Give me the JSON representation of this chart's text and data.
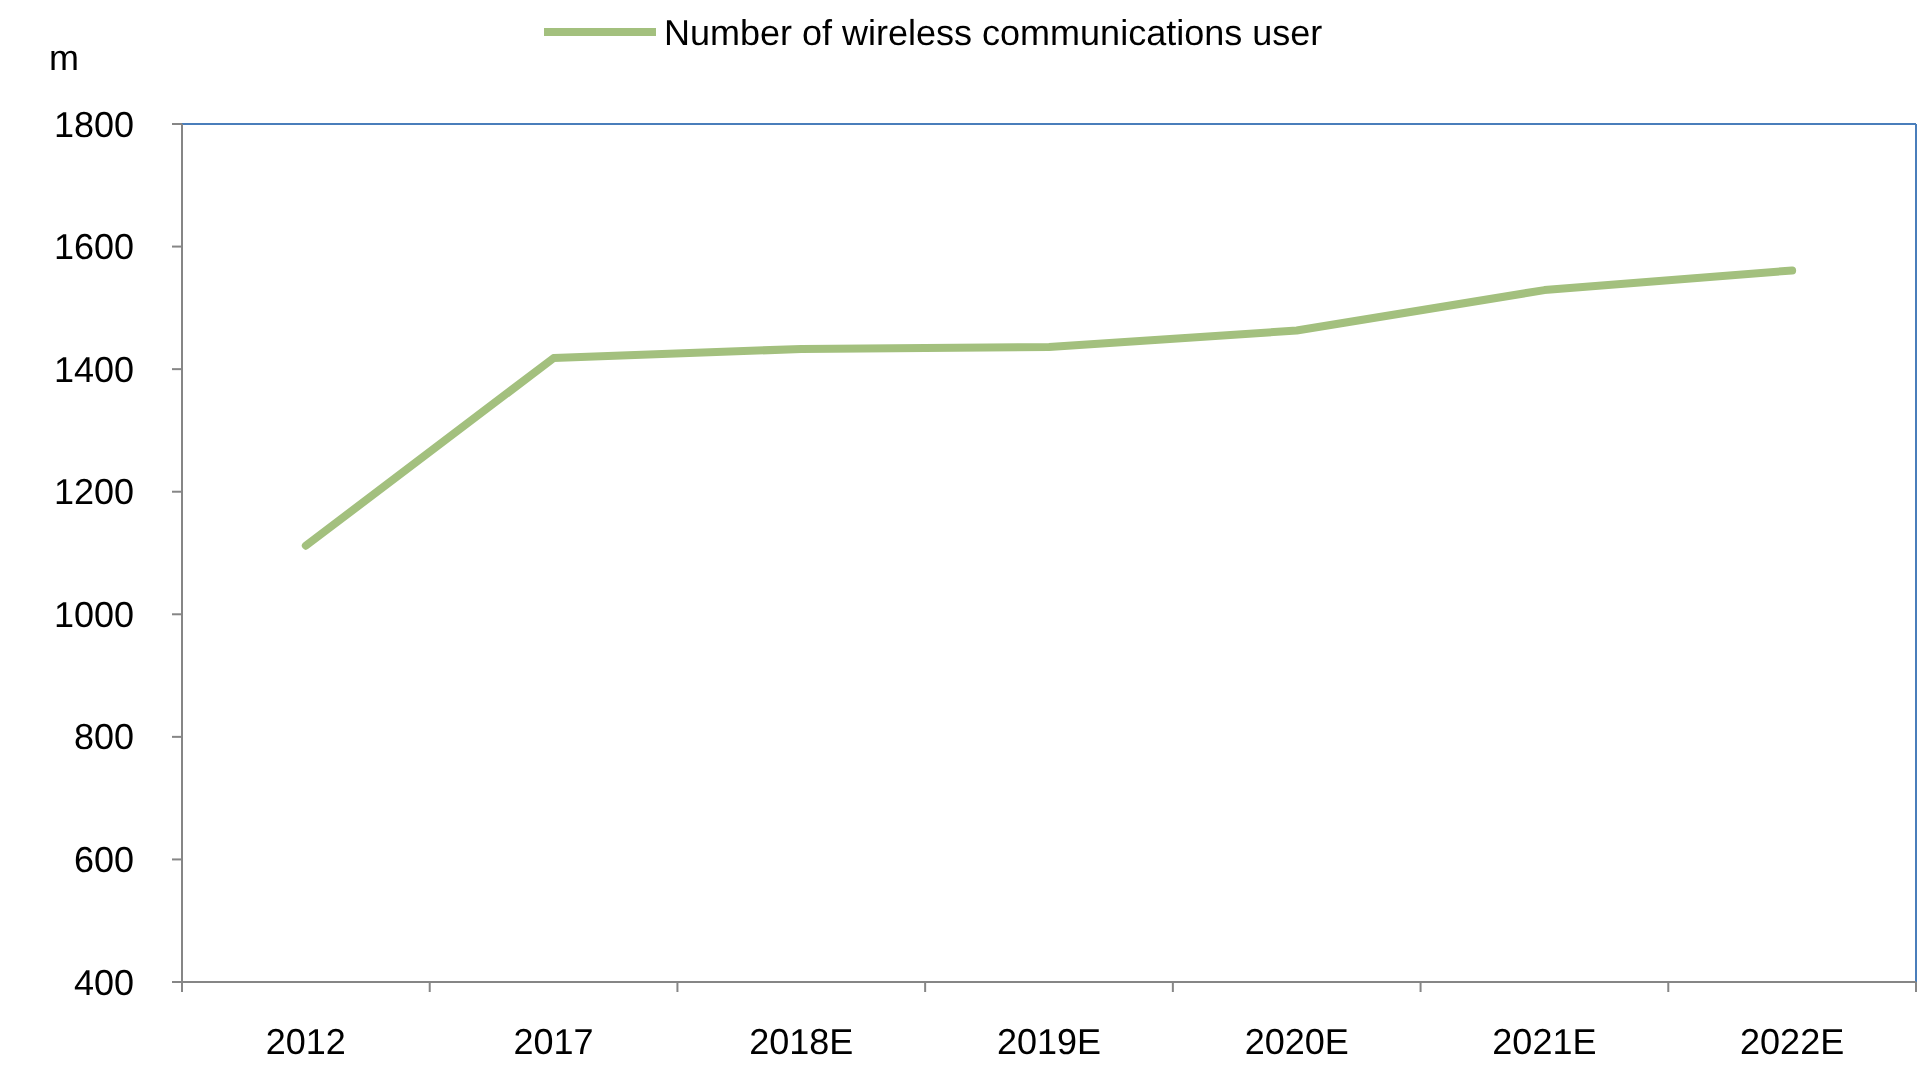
{
  "chart_data": {
    "type": "line",
    "ylabel": "m",
    "categories": [
      "2012",
      "2017",
      "2018E",
      "2019E",
      "2020E",
      "2021E",
      "2022E"
    ],
    "series": [
      {
        "name": "Number of wireless communications user",
        "color": "#a3c07e",
        "values": [
          1112,
          1418,
          1433,
          1436,
          1463,
          1529,
          1561
        ]
      }
    ],
    "ylim": [
      400,
      1800
    ],
    "yticks": [
      400,
      600,
      800,
      1000,
      1200,
      1400,
      1600,
      1800
    ],
    "grid": false,
    "legend": "top",
    "marker": "none",
    "line_style": "solid"
  }
}
